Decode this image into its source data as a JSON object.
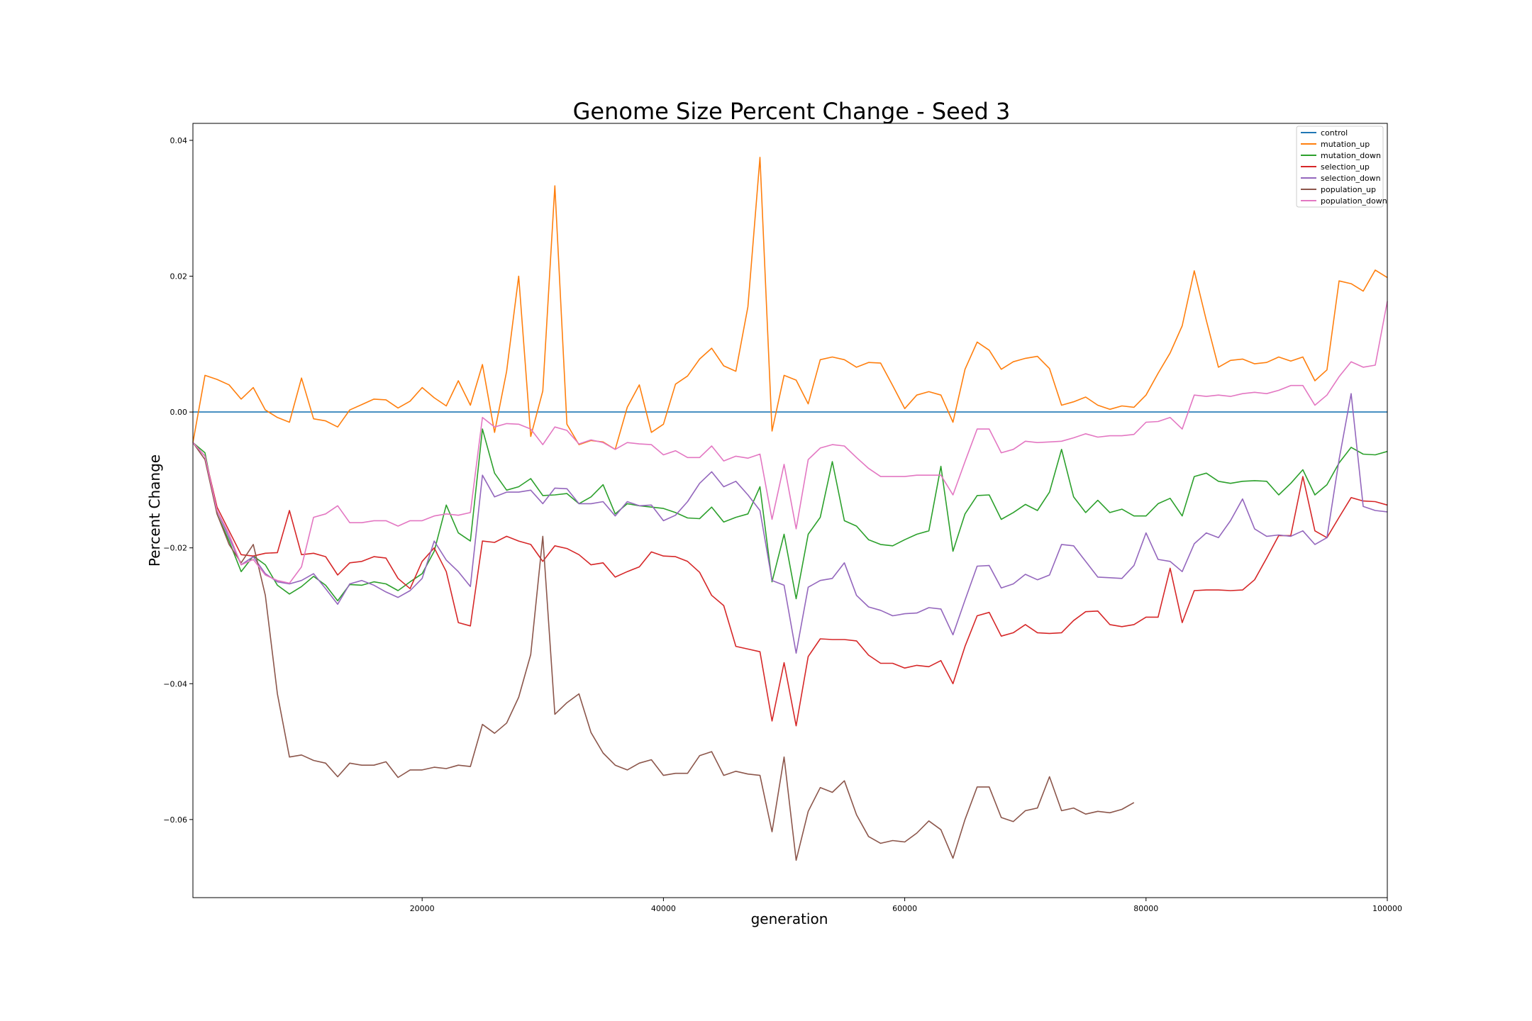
{
  "chart_data": {
    "type": "line",
    "title": "Genome Size Percent Change - Seed 3",
    "xlabel": "generation",
    "ylabel": "Percent Change",
    "xlim": [
      1000,
      100000
    ],
    "ylim": [
      -0.0715,
      0.0425
    ],
    "xticks": [
      20000,
      40000,
      60000,
      80000,
      100000
    ],
    "xtick_labels": [
      "20000",
      "40000",
      "60000",
      "80000",
      "100000"
    ],
    "yticks": [
      0.04,
      0.02,
      0.0,
      -0.02,
      -0.04,
      -0.06
    ],
    "ytick_labels": [
      "0.04",
      "0.02",
      "0.00",
      "−0.02",
      "−0.04",
      "−0.06"
    ],
    "grid": false,
    "legend_position": "top-right",
    "x_start": 1000,
    "x_step": 1000,
    "series": [
      {
        "name": "control",
        "color": "#1f77b4",
        "values": [
          0,
          0,
          0,
          0,
          0,
          0,
          0,
          0,
          0,
          0,
          0,
          0,
          0,
          0,
          0,
          0,
          0,
          0,
          0,
          0,
          0,
          0,
          0,
          0,
          0,
          0,
          0,
          0,
          0,
          0,
          0,
          0,
          0,
          0,
          0,
          0,
          0,
          0,
          0,
          0,
          0,
          0,
          0,
          0,
          0,
          0,
          0,
          0,
          0,
          0,
          0,
          0,
          0,
          0,
          0,
          0,
          0,
          0,
          0,
          0,
          0,
          0,
          0,
          0,
          0,
          0,
          0,
          0,
          0,
          0,
          0,
          0,
          0,
          0,
          0,
          0,
          0,
          0,
          0,
          0,
          0,
          0,
          0,
          0,
          0,
          0,
          0,
          0,
          0,
          0,
          0,
          0,
          0,
          0,
          0,
          0,
          0,
          0,
          0,
          0
        ]
      },
      {
        "name": "mutation_up",
        "color": "#ff7f0e",
        "values": [
          -0.0045,
          0.0054,
          0.0048,
          0.004,
          0.0019,
          0.0036,
          0.0003,
          -0.0008,
          -0.0015,
          0.005,
          -0.001,
          -0.0013,
          -0.0022,
          0.0003,
          0.0011,
          0.0019,
          0.0018,
          0.0006,
          0.0016,
          0.0036,
          0.0021,
          0.0009,
          0.0046,
          0.001,
          0.007,
          -0.003,
          0.006,
          0.02,
          -0.0036,
          0.0031,
          0.0333,
          -0.0018,
          -0.0048,
          -0.0042,
          -0.0044,
          -0.0055,
          0.0007,
          0.004,
          -0.003,
          -0.0018,
          0.0041,
          0.0053,
          0.0078,
          0.0094,
          0.0068,
          0.006,
          0.0155,
          0.0375,
          -0.0028,
          0.0054,
          0.0047,
          0.0012,
          0.0077,
          0.0081,
          0.0077,
          0.0066,
          0.0073,
          0.0072,
          0.0039,
          0.0005,
          0.0025,
          0.003,
          0.0025,
          -0.0015,
          0.0063,
          0.0103,
          0.0091,
          0.0063,
          0.0074,
          0.0079,
          0.0082,
          0.0064,
          0.001,
          0.0015,
          0.0022,
          0.001,
          0.0004,
          0.0009,
          0.0007,
          0.0025,
          0.0057,
          0.0087,
          0.0127,
          0.0208,
          0.0135,
          0.0066,
          0.0076,
          0.0078,
          0.0071,
          0.0073,
          0.0081,
          0.0075,
          0.0081,
          0.0046,
          0.0062,
          0.0193,
          0.0189,
          0.0178,
          0.0209,
          0.0198
        ]
      },
      {
        "name": "mutation_down",
        "color": "#2ca02c",
        "values": [
          -0.0045,
          -0.006,
          -0.015,
          -0.019,
          -0.0235,
          -0.0212,
          -0.0225,
          -0.0255,
          -0.0268,
          -0.0257,
          -0.0242,
          -0.0255,
          -0.0278,
          -0.0254,
          -0.0255,
          -0.025,
          -0.0253,
          -0.0263,
          -0.025,
          -0.0238,
          -0.0205,
          -0.0137,
          -0.0178,
          -0.019,
          -0.0025,
          -0.009,
          -0.0115,
          -0.011,
          -0.0098,
          -0.0123,
          -0.0122,
          -0.012,
          -0.0135,
          -0.0125,
          -0.0107,
          -0.015,
          -0.0135,
          -0.0138,
          -0.014,
          -0.0142,
          -0.0148,
          -0.0156,
          -0.0157,
          -0.014,
          -0.0162,
          -0.0155,
          -0.015,
          -0.011,
          -0.025,
          -0.018,
          -0.0275,
          -0.018,
          -0.0155,
          -0.0073,
          -0.016,
          -0.0168,
          -0.0188,
          -0.0195,
          -0.0197,
          -0.0188,
          -0.018,
          -0.0175,
          -0.008,
          -0.0205,
          -0.015,
          -0.0123,
          -0.0122,
          -0.0158,
          -0.0148,
          -0.0136,
          -0.0145,
          -0.0118,
          -0.0055,
          -0.0125,
          -0.0148,
          -0.013,
          -0.0148,
          -0.0143,
          -0.0153,
          -0.0153,
          -0.0135,
          -0.0127,
          -0.0153,
          -0.0095,
          -0.009,
          -0.0102,
          -0.0105,
          -0.0102,
          -0.0101,
          -0.0102,
          -0.0122,
          -0.0105,
          -0.0085,
          -0.0122,
          -0.0107,
          -0.0075,
          -0.0052,
          -0.0062,
          -0.0063,
          -0.0058
        ]
      },
      {
        "name": "selection_up",
        "color": "#d62728",
        "values": [
          -0.0045,
          -0.0065,
          -0.014,
          -0.0175,
          -0.021,
          -0.0212,
          -0.0208,
          -0.0207,
          -0.0145,
          -0.021,
          -0.0208,
          -0.0213,
          -0.024,
          -0.0222,
          -0.022,
          -0.0213,
          -0.0215,
          -0.0245,
          -0.026,
          -0.022,
          -0.02,
          -0.0235,
          -0.031,
          -0.0315,
          -0.019,
          -0.0192,
          -0.0183,
          -0.019,
          -0.0195,
          -0.022,
          -0.0197,
          -0.0201,
          -0.021,
          -0.0225,
          -0.0222,
          -0.0243,
          -0.0235,
          -0.0228,
          -0.0206,
          -0.0212,
          -0.0213,
          -0.022,
          -0.0236,
          -0.027,
          -0.0285,
          -0.0345,
          -0.0349,
          -0.0353,
          -0.0455,
          -0.0369,
          -0.0462,
          -0.036,
          -0.0334,
          -0.0335,
          -0.0335,
          -0.0337,
          -0.0358,
          -0.037,
          -0.037,
          -0.0377,
          -0.0373,
          -0.0375,
          -0.0366,
          -0.04,
          -0.0345,
          -0.03,
          -0.0295,
          -0.033,
          -0.0325,
          -0.0313,
          -0.0325,
          -0.0326,
          -0.0325,
          -0.0307,
          -0.0294,
          -0.0293,
          -0.0313,
          -0.0316,
          -0.0313,
          -0.0302,
          -0.0302,
          -0.023,
          -0.031,
          -0.0263,
          -0.0262,
          -0.0262,
          -0.0263,
          -0.0262,
          -0.0247,
          -0.0215,
          -0.0182,
          -0.0182,
          -0.0095,
          -0.0175,
          -0.0185,
          -0.0155,
          -0.0126,
          -0.0131,
          -0.0132,
          -0.0137
        ]
      },
      {
        "name": "selection_down",
        "color": "#9467bd",
        "values": [
          -0.0045,
          -0.0065,
          -0.0145,
          -0.0185,
          -0.0225,
          -0.0213,
          -0.0238,
          -0.025,
          -0.0253,
          -0.0248,
          -0.0238,
          -0.026,
          -0.0283,
          -0.0253,
          -0.0248,
          -0.0255,
          -0.0265,
          -0.0273,
          -0.0263,
          -0.0245,
          -0.019,
          -0.0218,
          -0.0235,
          -0.0257,
          -0.0093,
          -0.0125,
          -0.0118,
          -0.0118,
          -0.0115,
          -0.0135,
          -0.0112,
          -0.0113,
          -0.0135,
          -0.0135,
          -0.0132,
          -0.0153,
          -0.0132,
          -0.0138,
          -0.0137,
          -0.016,
          -0.0152,
          -0.0132,
          -0.0105,
          -0.0088,
          -0.011,
          -0.0102,
          -0.0122,
          -0.0145,
          -0.0248,
          -0.0255,
          -0.0355,
          -0.0258,
          -0.0248,
          -0.0245,
          -0.0222,
          -0.027,
          -0.0287,
          -0.0292,
          -0.03,
          -0.0297,
          -0.0296,
          -0.0288,
          -0.029,
          -0.0328,
          -0.0277,
          -0.0227,
          -0.0226,
          -0.0259,
          -0.0253,
          -0.0239,
          -0.0247,
          -0.024,
          -0.0195,
          -0.0197,
          -0.022,
          -0.0243,
          -0.0244,
          -0.0245,
          -0.0226,
          -0.0178,
          -0.0217,
          -0.022,
          -0.0235,
          -0.0194,
          -0.0178,
          -0.0185,
          -0.016,
          -0.0128,
          -0.0172,
          -0.0183,
          -0.0181,
          -0.0183,
          -0.0175,
          -0.0195,
          -0.0185,
          -0.007,
          0.0027,
          -0.0139,
          -0.0145,
          -0.0147
        ]
      },
      {
        "name": "population_up",
        "color": "#8c564b",
        "values": [
          -0.0045,
          -0.007,
          -0.015,
          -0.0195,
          -0.0222,
          -0.0195,
          -0.027,
          -0.0415,
          -0.0508,
          -0.0505,
          -0.0513,
          -0.0517,
          -0.0537,
          -0.0517,
          -0.052,
          -0.052,
          -0.0515,
          -0.0538,
          -0.0527,
          -0.0527,
          -0.0523,
          -0.0525,
          -0.052,
          -0.0522,
          -0.046,
          -0.0473,
          -0.0458,
          -0.042,
          -0.0357,
          -0.0183,
          -0.0445,
          -0.0428,
          -0.0415,
          -0.0472,
          -0.0502,
          -0.052,
          -0.0527,
          -0.0517,
          -0.0512,
          -0.0535,
          -0.0532,
          -0.0532,
          -0.0506,
          -0.05,
          -0.0535,
          -0.0529,
          -0.0533,
          -0.0535,
          -0.0618,
          -0.0508,
          -0.066,
          -0.0588,
          -0.0553,
          -0.056,
          -0.0543,
          -0.0593,
          -0.0625,
          -0.0635,
          -0.0631,
          -0.0633,
          -0.062,
          -0.0602,
          -0.0615,
          -0.0657,
          -0.06,
          -0.0552,
          -0.0552,
          -0.0597,
          -0.0603,
          -0.0587,
          -0.0583,
          -0.0537,
          -0.0587,
          -0.0583,
          -0.0592,
          -0.0588,
          -0.059,
          -0.0585,
          -0.0575
        ]
      },
      {
        "name": "population_down",
        "color": "#e377c2",
        "values": [
          -0.0045,
          -0.0065,
          -0.0145,
          -0.018,
          -0.0225,
          -0.0217,
          -0.024,
          -0.0248,
          -0.0252,
          -0.0228,
          -0.0155,
          -0.015,
          -0.0138,
          -0.0163,
          -0.0163,
          -0.016,
          -0.016,
          -0.0168,
          -0.016,
          -0.016,
          -0.0153,
          -0.015,
          -0.0152,
          -0.0148,
          -0.0008,
          -0.0022,
          -0.0017,
          -0.0018,
          -0.0025,
          -0.0048,
          -0.0022,
          -0.0027,
          -0.0047,
          -0.0041,
          -0.0045,
          -0.0055,
          -0.0045,
          -0.0047,
          -0.0048,
          -0.0063,
          -0.0057,
          -0.0067,
          -0.0067,
          -0.005,
          -0.0072,
          -0.0065,
          -0.0068,
          -0.0062,
          -0.0158,
          -0.0077,
          -0.0172,
          -0.007,
          -0.0053,
          -0.0048,
          -0.005,
          -0.0067,
          -0.0083,
          -0.0095,
          -0.0095,
          -0.0095,
          -0.0093,
          -0.0093,
          -0.0093,
          -0.0122,
          -0.0073,
          -0.0025,
          -0.0025,
          -0.006,
          -0.0055,
          -0.0043,
          -0.0045,
          -0.0044,
          -0.0043,
          -0.0038,
          -0.0032,
          -0.0037,
          -0.0035,
          -0.0035,
          -0.0033,
          -0.0015,
          -0.0014,
          -0.0008,
          -0.0025,
          0.0025,
          0.0023,
          0.0025,
          0.0023,
          0.0027,
          0.0029,
          0.0027,
          0.0032,
          0.0039,
          0.0039,
          0.001,
          0.0025,
          0.0052,
          0.0074,
          0.0066,
          0.0069,
          0.0163
        ]
      }
    ]
  }
}
